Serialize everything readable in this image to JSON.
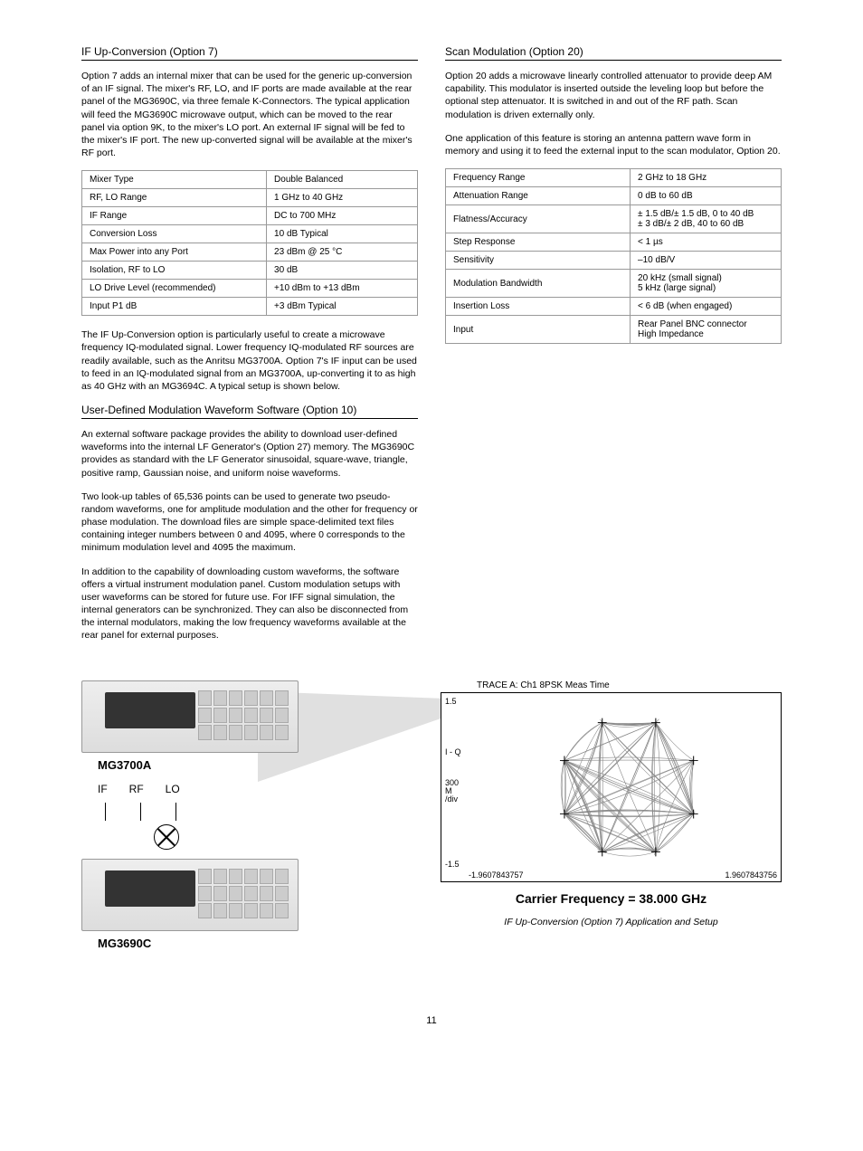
{
  "left": {
    "sec1": {
      "title": "IF Up-Conversion (Option 7)",
      "p1": "Option 7 adds an internal mixer that can be used for the generic up-conversion of an IF signal. The mixer's RF, LO, and IF ports are made available at the rear panel of the MG3690C, via three female K-Connectors. The typical application will feed the MG3690C microwave output, which can be moved to the rear panel via option 9K, to the mixer's LO port. An external IF signal will be fed to the mixer's IF port. The new up-converted signal will be available at the mixer's RF port.",
      "table": [
        [
          "Mixer Type",
          "Double Balanced"
        ],
        [
          "RF, LO Range",
          "1 GHz to 40 GHz"
        ],
        [
          "IF Range",
          "DC to 700 MHz"
        ],
        [
          "Conversion Loss",
          "10 dB Typical"
        ],
        [
          "Max Power into any Port",
          "23 dBm @ 25 °C"
        ],
        [
          "Isolation, RF to LO",
          "30 dB"
        ],
        [
          "LO Drive Level (recommended)",
          "+10 dBm to +13 dBm"
        ],
        [
          "Input P1 dB",
          "+3 dBm Typical"
        ]
      ],
      "p2": "The IF Up-Conversion option is particularly useful to create a microwave frequency IQ-modulated signal. Lower frequency IQ-modulated RF sources are readily available, such as the Anritsu MG3700A. Option 7's IF input can be used to feed in an IQ-modulated signal from an MG3700A, up-converting it to as high as 40 GHz with an MG3694C. A typical setup is shown below."
    },
    "sec2": {
      "title": "User-Defined Modulation Waveform Software (Option 10)",
      "p1": "An external software package provides the ability to download user-defined waveforms into the internal LF Generator's (Option 27) memory. The MG3690C provides as standard with the LF Generator sinusoidal, square-wave, triangle, positive ramp, Gaussian noise, and uniform noise waveforms.",
      "p2": "Two look-up tables of 65,536 points can be used to generate two pseudo-random waveforms, one for amplitude modulation and the other for frequency or phase modulation. The download files are simple space-delimited text files containing integer numbers between 0 and 4095, where 0 corresponds to the minimum modulation level and 4095 the maximum.",
      "p3": "In addition to the capability of downloading custom waveforms, the software offers a virtual instrument modulation panel. Custom modulation setups with user waveforms can be stored for future use. For IFF signal simulation, the internal generators can be synchronized. They can also be disconnected from the internal modulators, making the low frequency waveforms available at the rear panel for external purposes."
    }
  },
  "right": {
    "sec1": {
      "title": "Scan Modulation (Option 20)",
      "p1": "Option 20 adds a microwave linearly controlled attenuator to provide deep AM capability. This modulator is inserted outside the leveling loop but before the optional step attenuator. It is switched in and out of the RF path. Scan modulation is driven externally only.",
      "p2": "One application of this feature is storing an antenna pattern wave form in memory and using it to feed the external input to the scan modulator, Option 20.",
      "table": [
        [
          "Frequency Range",
          "2 GHz to 18 GHz"
        ],
        [
          "Attenuation Range",
          "0 dB to 60 dB"
        ],
        [
          "Flatness/Accuracy",
          "± 1.5 dB/± 1.5 dB, 0 to 40 dB\n± 3 dB/± 2 dB, 40 to 60 dB"
        ],
        [
          "Step Response",
          "< 1 µs"
        ],
        [
          "Sensitivity",
          "–10 dB/V"
        ],
        [
          "Modulation Bandwidth",
          "20 kHz (small signal)\n5 kHz (large signal)"
        ],
        [
          "Insertion Loss",
          "< 6 dB (when engaged)"
        ],
        [
          "Input",
          "Rear Panel BNC connector\nHigh Impedance"
        ]
      ]
    }
  },
  "figure": {
    "dev1": "MG3700A",
    "dev2": "MG3690C",
    "ports": {
      "if": "IF",
      "rf": "RF",
      "lo": "LO"
    },
    "trace": "TRACE A: Ch1 8PSK Meas Time",
    "iq": "I - Q",
    "ydiv": "300\nM\n/div",
    "ytop": "1.5",
    "ybot": "-1.5",
    "xleft": "-1.9607843757",
    "xright": "1.9607843756",
    "carrier": "Carrier Frequency = 38.000 GHz",
    "caption": "IF Up-Conversion (Option 7) Application and Setup"
  },
  "page": "11"
}
